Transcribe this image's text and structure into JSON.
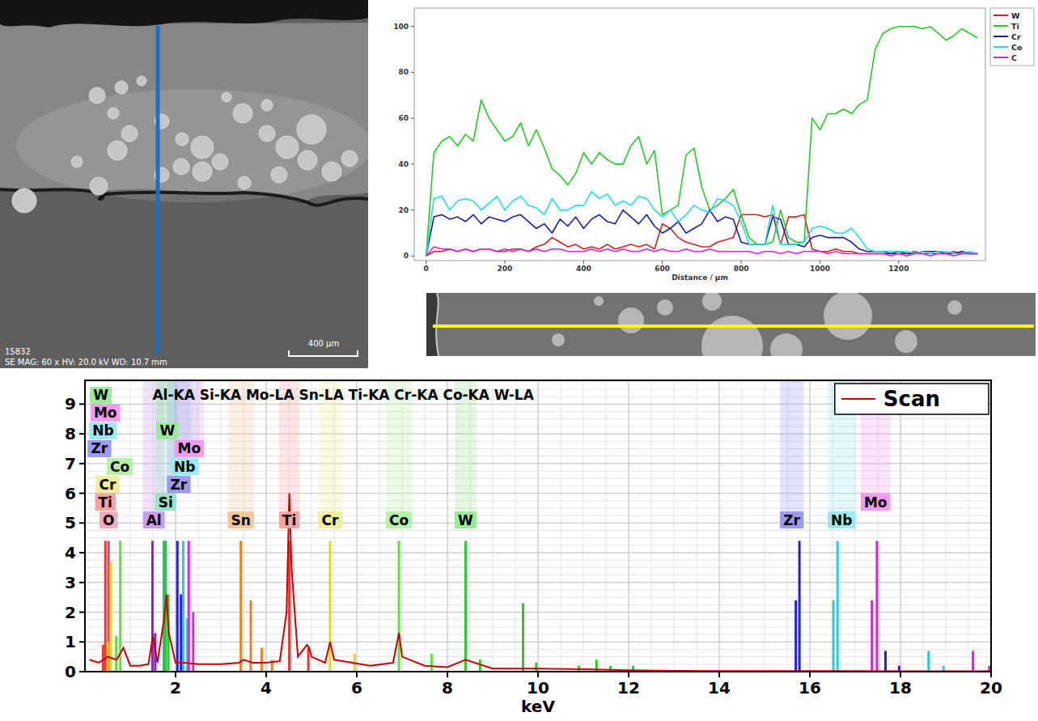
{
  "micrograph": {
    "id": "15832",
    "info": "SE MAG: 60 x HV: 20.0 kV WD: 10.7 mm",
    "scale_bar": "400 µm"
  },
  "chart_data": [
    {
      "type": "line",
      "xlabel": "Distance / µm",
      "legend": "right",
      "x": [
        0,
        20,
        40,
        60,
        80,
        100,
        120,
        140,
        160,
        180,
        200,
        220,
        240,
        260,
        280,
        300,
        320,
        340,
        360,
        380,
        400,
        420,
        440,
        460,
        480,
        500,
        520,
        540,
        560,
        580,
        600,
        620,
        640,
        660,
        680,
        700,
        720,
        740,
        760,
        780,
        800,
        820,
        840,
        860,
        880,
        900,
        920,
        940,
        960,
        980,
        1000,
        1020,
        1040,
        1060,
        1080,
        1100,
        1120,
        1140,
        1160,
        1180,
        1200,
        1220,
        1240,
        1260,
        1280,
        1300,
        1320,
        1340,
        1360,
        1380,
        1400
      ],
      "xlim": [
        -30,
        1420
      ],
      "xticks": [
        0,
        200,
        400,
        600,
        800,
        1000,
        1200
      ],
      "ylim": [
        -2,
        108
      ],
      "yticks": [
        0,
        20,
        40,
        60,
        80,
        100
      ],
      "series": [
        {
          "name": "W",
          "color": "#d02020",
          "values": [
            0,
            2,
            2,
            3,
            2,
            3,
            2,
            3,
            3,
            2,
            2,
            3,
            3,
            2,
            4,
            5,
            8,
            6,
            4,
            5,
            3,
            4,
            3,
            5,
            3,
            4,
            5,
            4,
            5,
            3,
            14,
            12,
            8,
            6,
            5,
            4,
            4,
            6,
            7,
            8,
            18,
            18,
            18,
            17,
            18,
            5,
            17,
            17,
            18,
            3,
            2,
            2,
            3,
            2,
            2,
            1,
            1,
            1,
            1,
            1,
            1,
            1,
            2,
            1,
            1,
            1,
            1,
            2,
            1,
            1,
            1
          ]
        },
        {
          "name": "Ti",
          "color": "#22cc22",
          "values": [
            0,
            45,
            50,
            52,
            48,
            53,
            50,
            68,
            60,
            55,
            50,
            52,
            58,
            48,
            55,
            47,
            38,
            35,
            31,
            36,
            45,
            40,
            45,
            42,
            40,
            40,
            48,
            52,
            40,
            46,
            18,
            20,
            22,
            44,
            47,
            30,
            20,
            22,
            25,
            29,
            18,
            8,
            5,
            5,
            6,
            20,
            8,
            6,
            6,
            60,
            55,
            62,
            62,
            64,
            62,
            66,
            68,
            90,
            97,
            99,
            100,
            100,
            100,
            99,
            100,
            97,
            94,
            96,
            99,
            97,
            95
          ]
        },
        {
          "name": "Cr",
          "color": "#1c1ca0",
          "values": [
            0,
            17,
            18,
            16,
            17,
            15,
            18,
            14,
            17,
            16,
            15,
            17,
            18,
            15,
            12,
            14,
            10,
            16,
            13,
            17,
            12,
            16,
            18,
            15,
            14,
            20,
            17,
            14,
            18,
            13,
            10,
            12,
            15,
            10,
            12,
            14,
            20,
            15,
            17,
            16,
            6,
            5,
            5,
            5,
            17,
            16,
            5,
            5,
            4,
            8,
            9,
            8,
            8,
            8,
            6,
            3,
            2,
            2,
            2,
            1,
            2,
            1,
            1,
            2,
            2,
            2,
            1,
            1,
            2,
            1,
            1
          ]
        },
        {
          "name": "Co",
          "color": "#20dede",
          "values": [
            0,
            25,
            26,
            20,
            24,
            25,
            24,
            20,
            23,
            26,
            20,
            24,
            26,
            22,
            21,
            18,
            25,
            20,
            20,
            22,
            22,
            28,
            25,
            27,
            22,
            24,
            22,
            26,
            25,
            20,
            17,
            20,
            15,
            18,
            22,
            20,
            19,
            25,
            24,
            22,
            15,
            5,
            5,
            5,
            22,
            5,
            5,
            5,
            6,
            12,
            13,
            12,
            10,
            10,
            12,
            8,
            3,
            2,
            2,
            2,
            2,
            2,
            1,
            2,
            1,
            2,
            2,
            1,
            1,
            2,
            1
          ]
        },
        {
          "name": "C",
          "color": "#dd22dd",
          "values": [
            0,
            4,
            3,
            3,
            2,
            3,
            2,
            3,
            3,
            2,
            3,
            2,
            3,
            2,
            3,
            2,
            3,
            3,
            2,
            2,
            2,
            3,
            2,
            3,
            2,
            3,
            2,
            2,
            3,
            2,
            3,
            2,
            2,
            3,
            2,
            2,
            3,
            2,
            2,
            2,
            2,
            2,
            1,
            2,
            2,
            1,
            2,
            1,
            2,
            2,
            2,
            1,
            2,
            1,
            1,
            1,
            1,
            1,
            1,
            0,
            1,
            0,
            1,
            1,
            0,
            1,
            1,
            0,
            1,
            1,
            1
          ]
        }
      ]
    },
    {
      "type": "line",
      "xlabel": "keV",
      "legend": "upper right",
      "grid": true,
      "xlim": [
        0,
        20
      ],
      "xticks": [
        2,
        4,
        6,
        8,
        10,
        12,
        14,
        16,
        18,
        20
      ],
      "ylim": [
        0,
        9.8
      ],
      "yticks": [
        0,
        1,
        2,
        3,
        4,
        5,
        6,
        7,
        8,
        9
      ],
      "series": [
        {
          "name": "Scan",
          "color": "#cc0000",
          "x": [
            0.1,
            0.3,
            0.5,
            0.7,
            0.85,
            1.0,
            1.2,
            1.4,
            1.5,
            1.6,
            1.75,
            1.8,
            1.85,
            2.0,
            2.2,
            2.5,
            3.0,
            3.4,
            3.5,
            3.7,
            4.0,
            4.3,
            4.45,
            4.51,
            4.56,
            4.7,
            4.9,
            4.95,
            5.0,
            5.3,
            5.41,
            5.5,
            5.9,
            6.3,
            6.8,
            6.93,
            7.0,
            7.5,
            8.0,
            8.4,
            9.0,
            10,
            11,
            12,
            13,
            14,
            15,
            16,
            18,
            20
          ],
          "values": [
            0.4,
            0.3,
            0.5,
            0.4,
            0.8,
            0.2,
            0.2,
            0.25,
            1.2,
            0.3,
            1.8,
            2.6,
            1.3,
            0.3,
            0.3,
            0.25,
            0.25,
            0.3,
            0.4,
            0.3,
            0.3,
            0.35,
            2.0,
            6.0,
            3.5,
            0.5,
            0.9,
            0.8,
            0.5,
            0.3,
            1.0,
            0.4,
            0.3,
            0.2,
            0.3,
            1.3,
            0.5,
            0.2,
            0.15,
            0.4,
            0.1,
            0.1,
            0.08,
            0.05,
            0.03,
            0.02,
            0.02,
            0.02,
            0.01,
            0.01
          ]
        }
      ],
      "element_lines": [
        {
          "name": "O",
          "color": "#e8406a",
          "x": [
            0.52
          ],
          "values": [
            4.4
          ],
          "labels": [
            [
              0.52,
              5.1
            ]
          ]
        },
        {
          "name": "Al",
          "color": "#9020d0",
          "x": [
            1.49,
            1.55
          ],
          "values": [
            4.4,
            1.3
          ],
          "labels": [
            [
              1.52,
              5.1
            ]
          ]
        },
        {
          "name": "Si",
          "color": "#20c080",
          "x": [
            1.74
          ],
          "values": [
            4.4
          ],
          "labels": [
            [
              1.78,
              5.7
            ]
          ]
        },
        {
          "name": "Sn",
          "color": "#f08020",
          "x": [
            3.44,
            3.66,
            3.9,
            4.13
          ],
          "values": [
            4.4,
            2.4,
            0.8,
            0.4
          ],
          "labels": [
            [
              3.44,
              5.1
            ]
          ]
        },
        {
          "name": "Ti",
          "color": "#ff3030",
          "x": [
            0.45,
            0.4,
            4.51,
            4.93
          ],
          "values": [
            4.4,
            0.9,
            4.4,
            0.8
          ],
          "labels": [
            [
              0.45,
              5.7
            ],
            [
              4.51,
              5.1
            ]
          ]
        },
        {
          "name": "Cr",
          "color": "#e0d820",
          "x": [
            0.57,
            0.5,
            5.41,
            5.95
          ],
          "values": [
            3.7,
            1.0,
            4.4,
            0.6
          ],
          "labels": [
            [
              0.5,
              6.3
            ],
            [
              5.41,
              5.1
            ]
          ]
        },
        {
          "name": "Co",
          "color": "#60e040",
          "x": [
            0.78,
            0.69,
            6.93,
            7.65
          ],
          "values": [
            4.4,
            1.2,
            4.4,
            0.6
          ],
          "labels": [
            [
              0.77,
              6.9
            ],
            [
              6.93,
              5.1
            ]
          ]
        },
        {
          "name": "W",
          "color": "#20d020",
          "x": [
            1.78,
            1.84,
            8.4,
            8.72,
            9.67,
            9.96,
            10.9,
            11.29,
            11.6,
            12.1
          ],
          "values": [
            4.4,
            2.6,
            4.4,
            0.4,
            2.3,
            0.3,
            0.2,
            0.4,
            0.2,
            0.2
          ],
          "labels": [
            [
              0.35,
              9.3
            ],
            [
              1.82,
              8.1
            ],
            [
              8.4,
              5.1
            ]
          ]
        },
        {
          "name": "Zr",
          "color": "#2020e0",
          "x": [
            2.04,
            2.12,
            15.69,
            15.77,
            17.67,
            17.97
          ],
          "values": [
            4.4,
            2.6,
            2.4,
            4.4,
            0.7,
            0.2
          ],
          "labels": [
            [
              0.32,
              7.5
            ],
            [
              2.07,
              6.3
            ],
            [
              15.6,
              5.1
            ]
          ]
        },
        {
          "name": "Nb",
          "color": "#20d0e0",
          "x": [
            2.17,
            2.26,
            16.52,
            16.61,
            18.62,
            18.95
          ],
          "values": [
            4.4,
            1.8,
            2.4,
            4.4,
            0.7,
            0.2
          ],
          "labels": [
            [
              0.4,
              8.1
            ],
            [
              2.2,
              6.9
            ],
            [
              16.7,
              5.1
            ]
          ]
        },
        {
          "name": "Mo",
          "color": "#e020e0",
          "x": [
            2.29,
            2.39,
            17.37,
            17.48,
            19.6,
            19.96
          ],
          "values": [
            4.4,
            2.0,
            2.4,
            4.4,
            0.7,
            0.2
          ],
          "labels": [
            [
              0.45,
              8.7
            ],
            [
              2.3,
              7.5
            ],
            [
              17.45,
              5.7
            ]
          ]
        }
      ],
      "line_labels": [
        {
          "text": "Al-KA",
          "x": 1.49,
          "y": 9.3
        },
        {
          "text": "Si-KA",
          "x": 1.74,
          "y": 9.3
        },
        {
          "text": "Mo-LA",
          "x": 2.29,
          "y": 9.3
        },
        {
          "text": "Sn-LA",
          "x": 3.44,
          "y": 9.3
        },
        {
          "text": "Ti-KA",
          "x": 4.51,
          "y": 9.3
        },
        {
          "text": "Cr-KA",
          "x": 5.41,
          "y": 9.3
        },
        {
          "text": "Co-KA",
          "x": 6.93,
          "y": 9.3
        },
        {
          "text": "W-LA",
          "x": 8.4,
          "y": 9.3
        }
      ]
    }
  ]
}
